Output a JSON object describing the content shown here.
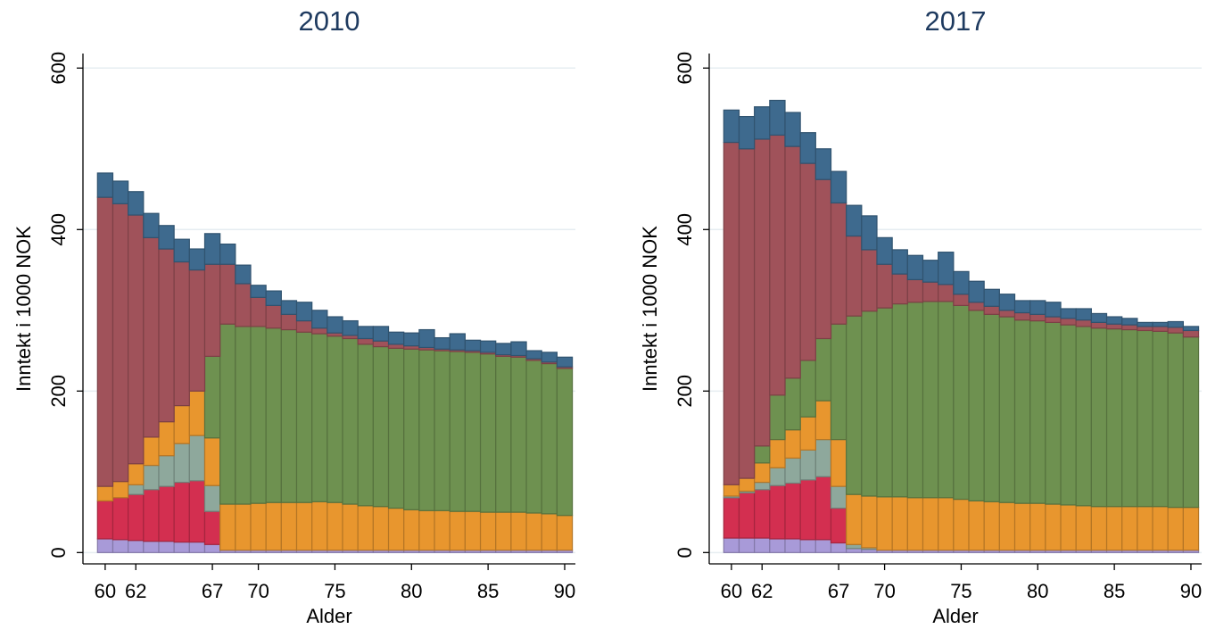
{
  "chart_data": [
    {
      "type": "bar",
      "stacked": true,
      "title": "2010",
      "xlabel": "Alder",
      "ylabel": "Inntekt i 1000 NOK",
      "x": [
        60,
        61,
        62,
        63,
        64,
        65,
        66,
        67,
        68,
        69,
        70,
        71,
        72,
        73,
        74,
        75,
        76,
        77,
        78,
        79,
        80,
        81,
        82,
        83,
        84,
        85,
        86,
        87,
        88,
        89,
        90
      ],
      "xlim": [
        58.55,
        90.7
      ],
      "xticks": [
        60,
        62,
        67,
        70,
        75,
        80,
        85,
        90
      ],
      "ylim": [
        -14,
        618
      ],
      "yticks": [
        0,
        200,
        400,
        600
      ],
      "grid": true,
      "series": [
        {
          "color": "#a89ad8",
          "values": [
            17,
            16,
            15,
            14,
            14,
            13,
            13,
            10,
            3,
            3,
            3,
            3,
            3,
            3,
            3,
            3,
            3,
            3,
            3,
            3,
            3,
            3,
            3,
            3,
            3,
            3,
            3,
            3,
            3,
            3,
            3
          ]
        },
        {
          "color": "#d32f50",
          "values": [
            47,
            52,
            57,
            64,
            68,
            74,
            76,
            41,
            0,
            0,
            0,
            0,
            0,
            0,
            0,
            0,
            0,
            0,
            0,
            0,
            0,
            0,
            0,
            0,
            0,
            0,
            0,
            0,
            0,
            0,
            0
          ]
        },
        {
          "color": "#8ea89c",
          "values": [
            0,
            0,
            12,
            30,
            38,
            48,
            56,
            32,
            0,
            0,
            0,
            0,
            0,
            0,
            0,
            0,
            0,
            0,
            0,
            0,
            0,
            0,
            0,
            0,
            0,
            0,
            0,
            0,
            0,
            0,
            0
          ]
        },
        {
          "color": "#e8962e",
          "values": [
            18,
            20,
            26,
            35,
            42,
            47,
            55,
            59,
            57,
            57,
            58,
            59,
            59,
            59,
            60,
            59,
            57,
            55,
            54,
            52,
            50,
            49,
            49,
            48,
            48,
            47,
            47,
            47,
            46,
            45,
            43
          ]
        },
        {
          "color": "#6e9150",
          "values": [
            0,
            0,
            0,
            0,
            0,
            0,
            0,
            101,
            223,
            220,
            219,
            216,
            214,
            211,
            208,
            206,
            205,
            200,
            198,
            198,
            199,
            199,
            198,
            198,
            197,
            196,
            193,
            192,
            189,
            186,
            182
          ]
        },
        {
          "color": "#a0525a",
          "values": [
            358,
            344,
            308,
            247,
            214,
            178,
            150,
            114,
            74,
            53,
            36,
            28,
            19,
            14,
            7,
            4,
            4,
            7,
            7,
            5,
            4,
            3,
            2,
            2,
            2,
            2,
            2,
            2,
            2,
            2,
            2
          ]
        },
        {
          "color": "#3e6a8e",
          "values": [
            30,
            28,
            29,
            30,
            29,
            28,
            26,
            38,
            25,
            23,
            15,
            18,
            17,
            23,
            22,
            20,
            18,
            15,
            18,
            15,
            16,
            22,
            14,
            20,
            13,
            14,
            14,
            17,
            10,
            12,
            12
          ]
        }
      ]
    },
    {
      "type": "bar",
      "stacked": true,
      "title": "2017",
      "xlabel": "Alder",
      "ylabel": "Inntekt i 1000 NOK",
      "x": [
        60,
        61,
        62,
        63,
        64,
        65,
        66,
        67,
        68,
        69,
        70,
        71,
        72,
        73,
        74,
        75,
        76,
        77,
        78,
        79,
        80,
        81,
        82,
        83,
        84,
        85,
        86,
        87,
        88,
        89,
        90
      ],
      "xlim": [
        58.55,
        90.7
      ],
      "xticks": [
        60,
        62,
        67,
        70,
        75,
        80,
        85,
        90
      ],
      "ylim": [
        -14,
        618
      ],
      "yticks": [
        0,
        200,
        400,
        600
      ],
      "grid": true,
      "series": [
        {
          "color": "#a89ad8",
          "values": [
            18,
            18,
            18,
            17,
            17,
            16,
            16,
            12,
            5,
            4,
            3,
            3,
            3,
            3,
            3,
            3,
            3,
            3,
            3,
            3,
            3,
            3,
            3,
            3,
            3,
            3,
            3,
            3,
            3,
            3,
            3
          ]
        },
        {
          "color": "#d32f50",
          "values": [
            50,
            56,
            60,
            66,
            69,
            74,
            78,
            43,
            0,
            0,
            0,
            0,
            0,
            0,
            0,
            0,
            0,
            0,
            0,
            0,
            0,
            0,
            0,
            0,
            0,
            0,
            0,
            0,
            0,
            0,
            0
          ]
        },
        {
          "color": "#8ea89c",
          "values": [
            2,
            2,
            9,
            22,
            31,
            37,
            46,
            27,
            5,
            2,
            0,
            0,
            0,
            0,
            0,
            0,
            0,
            0,
            0,
            0,
            0,
            0,
            0,
            0,
            0,
            0,
            0,
            0,
            0,
            0,
            0
          ]
        },
        {
          "color": "#e8962e",
          "values": [
            14,
            16,
            24,
            35,
            35,
            41,
            48,
            58,
            62,
            64,
            66,
            66,
            65,
            65,
            65,
            63,
            61,
            60,
            59,
            58,
            58,
            57,
            56,
            55,
            54,
            54,
            54,
            54,
            54,
            53,
            53
          ]
        },
        {
          "color": "#6e9150",
          "values": [
            0,
            0,
            21,
            55,
            64,
            70,
            77,
            143,
            221,
            229,
            234,
            239,
            242,
            243,
            243,
            240,
            236,
            232,
            230,
            227,
            226,
            225,
            223,
            222,
            221,
            220,
            219,
            218,
            217,
            216,
            211
          ]
        },
        {
          "color": "#a0525a",
          "values": [
            424,
            408,
            380,
            322,
            287,
            244,
            197,
            150,
            99,
            76,
            54,
            37,
            28,
            24,
            21,
            14,
            10,
            10,
            8,
            9,
            8,
            7,
            8,
            8,
            7,
            6,
            6,
            5,
            6,
            7,
            8
          ]
        },
        {
          "color": "#3e6a8e",
          "values": [
            40,
            40,
            40,
            43,
            42,
            38,
            38,
            39,
            38,
            42,
            33,
            30,
            30,
            27,
            40,
            28,
            26,
            21,
            20,
            15,
            17,
            18,
            12,
            14,
            11,
            9,
            8,
            5,
            5,
            7,
            5
          ]
        }
      ]
    }
  ]
}
